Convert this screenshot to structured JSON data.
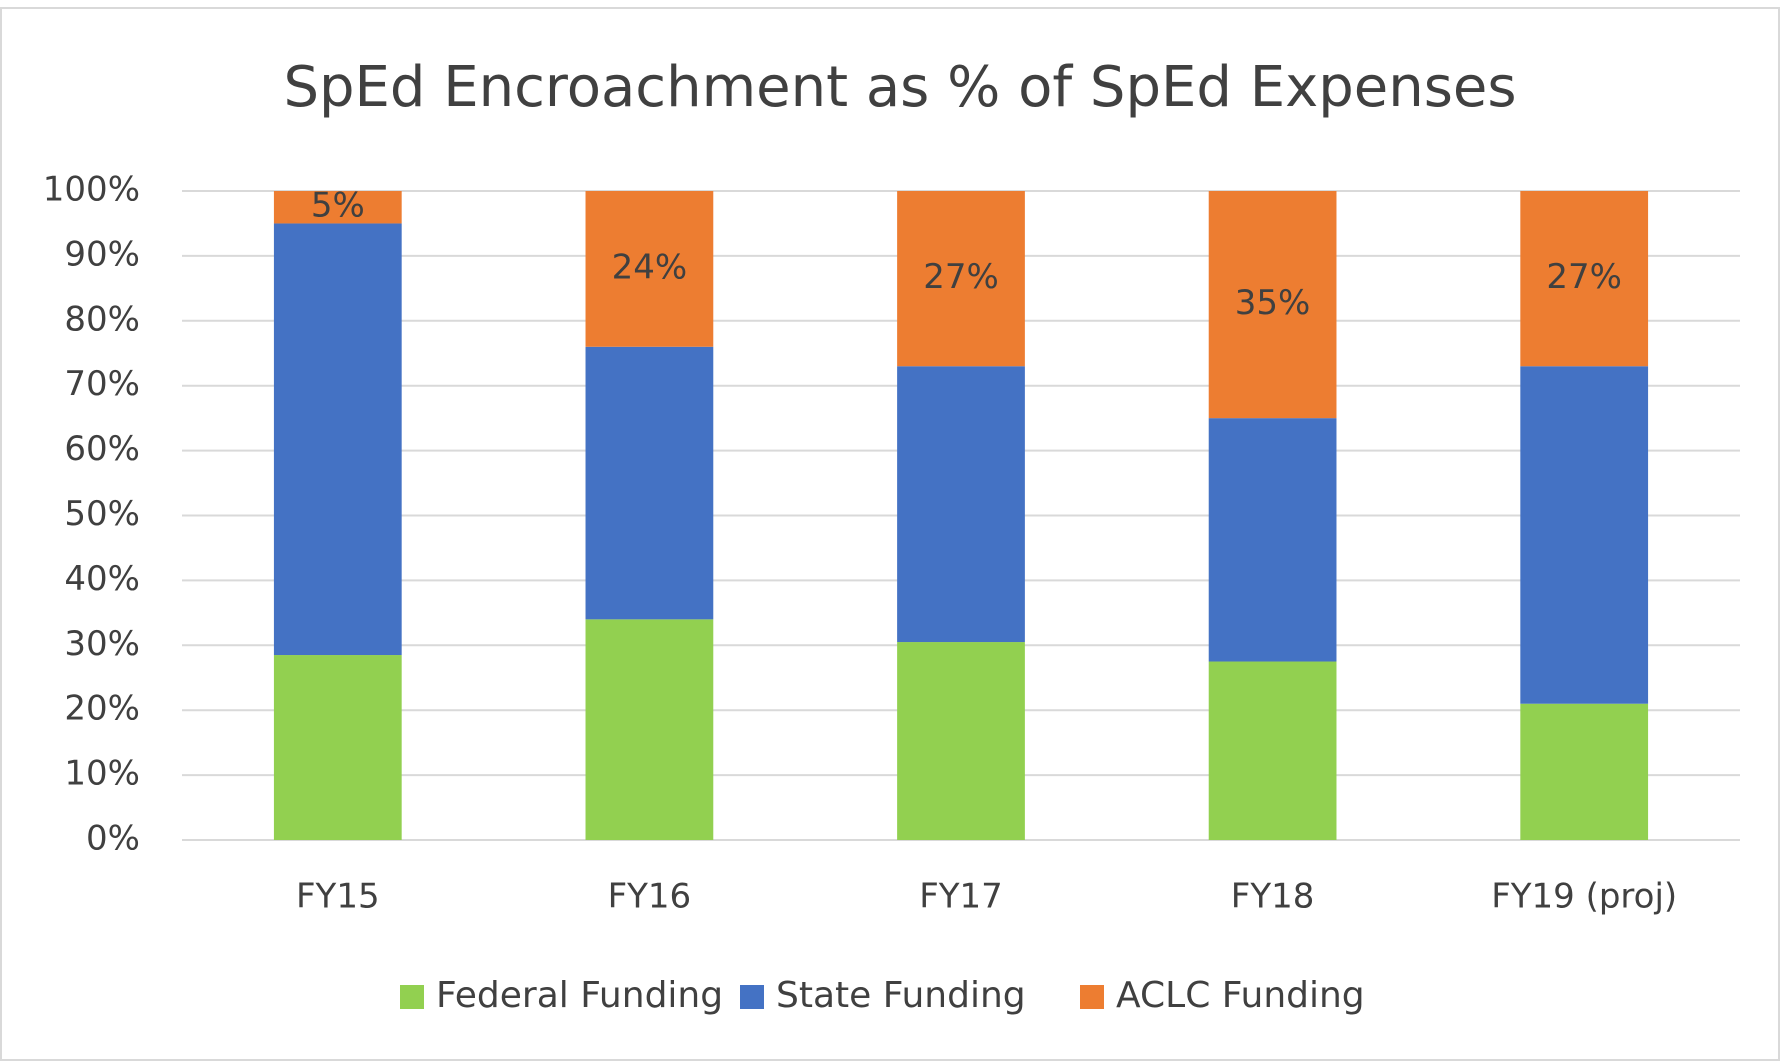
{
  "chart_data": {
    "type": "bar",
    "stacked": true,
    "title": "SpEd Encroachment as % of SpEd Expenses",
    "categories": [
      "FY15",
      "FY16",
      "FY17",
      "FY18",
      "FY19 (proj)"
    ],
    "series": [
      {
        "name": "Federal Funding",
        "color": "#92d050",
        "values": [
          28.5,
          34,
          30.5,
          27.5,
          21
        ]
      },
      {
        "name": "State Funding",
        "color": "#4472c4",
        "values": [
          66.5,
          42,
          42.5,
          37.5,
          52
        ]
      },
      {
        "name": "ACLC Funding",
        "color": "#ed7d31",
        "values": [
          5,
          24,
          27,
          35,
          27
        ],
        "value_labels": [
          "5%",
          "24%",
          "27%",
          "35%",
          "27%"
        ]
      }
    ],
    "ylim": [
      0,
      100
    ],
    "yticks": [
      {
        "value": 0,
        "label": "0%"
      },
      {
        "value": 10,
        "label": "10%"
      },
      {
        "value": 20,
        "label": "20%"
      },
      {
        "value": 30,
        "label": "30%"
      },
      {
        "value": 40,
        "label": "40%"
      },
      {
        "value": 50,
        "label": "50%"
      },
      {
        "value": 60,
        "label": "60%"
      },
      {
        "value": 70,
        "label": "70%"
      },
      {
        "value": 80,
        "label": "80%"
      },
      {
        "value": 90,
        "label": "90%"
      },
      {
        "value": 100,
        "label": "100%"
      }
    ],
    "grid": true,
    "legend": "bottom"
  }
}
